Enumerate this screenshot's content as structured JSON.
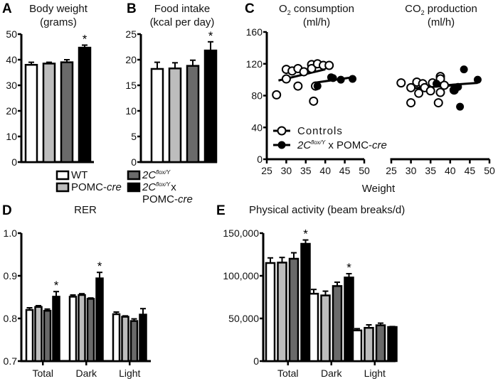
{
  "legend_groups": [
    {
      "name": "WT",
      "label": "WT",
      "italic": "",
      "sup": "",
      "rest": "",
      "line2": "",
      "fill": "#ffffff"
    },
    {
      "name": "POMC-cre",
      "label": "POMC-",
      "italic": "cre",
      "sup": "",
      "rest": "",
      "line2": "",
      "fill": "#bdbdbd"
    },
    {
      "name": "2Cflox/Y",
      "label": "2C",
      "italic": "",
      "sup": "flox/Y",
      "rest": "",
      "line2": "",
      "fill": "#6a6a6a"
    },
    {
      "name": "2Cflox/Y x POMC-cre",
      "label": "2C",
      "italic": "",
      "sup": "flox/Y",
      "rest": "x",
      "line2": "POMC-",
      "line2_italic": "cre",
      "fill": "#000000"
    }
  ],
  "chart_data": [
    {
      "panel": "A",
      "type": "bar",
      "title": [
        "Body weight",
        "(grams)"
      ],
      "ylim": [
        0,
        50
      ],
      "yticks": [
        "0",
        "10",
        "20",
        "30",
        "40",
        "50"
      ],
      "categories": [
        ""
      ],
      "series": [
        {
          "name": "WT",
          "values": [
            38
          ],
          "errors": [
            1
          ]
        },
        {
          "name": "POMC-cre",
          "values": [
            38.5
          ],
          "errors": [
            0.5
          ]
        },
        {
          "name": "2Cflox/Y",
          "values": [
            39
          ],
          "errors": [
            1
          ]
        },
        {
          "name": "2Cflox/Y x POMC-cre",
          "values": [
            44.7
          ],
          "errors": [
            1
          ]
        }
      ],
      "significant": [
        [
          false,
          false,
          false,
          true
        ]
      ]
    },
    {
      "panel": "B",
      "type": "bar",
      "title": [
        "Food intake",
        "(kcal per day)"
      ],
      "ylim": [
        0,
        25
      ],
      "yticks": [
        "0",
        "5",
        "10",
        "15",
        "20",
        "25"
      ],
      "categories": [
        ""
      ],
      "series": [
        {
          "name": "WT",
          "values": [
            18.2
          ],
          "errors": [
            1.3
          ]
        },
        {
          "name": "POMC-cre",
          "values": [
            18.3
          ],
          "errors": [
            1.1
          ]
        },
        {
          "name": "2Cflox/Y",
          "values": [
            18.8
          ],
          "errors": [
            1.1
          ]
        },
        {
          "name": "2Cflox/Y x POMC-cre",
          "values": [
            21.8
          ],
          "errors": [
            1.7
          ]
        }
      ],
      "significant": [
        [
          false,
          false,
          false,
          true
        ]
      ]
    },
    {
      "panel": "C",
      "type": "scatter",
      "xlabel": "Weight",
      "xlim": [
        25,
        50
      ],
      "ylim": [
        0,
        160
      ],
      "xticks": [
        "25",
        "30",
        "35",
        "40",
        "45",
        "50"
      ],
      "yticks": [
        "0",
        "40",
        "80",
        "120",
        "160"
      ],
      "legend": {
        "controls": "Controls",
        "mutant_base": "2C",
        "mutant_sup": "flox/Y",
        "mutant_rest": " x POMC-",
        "mutant_italic": "cre"
      },
      "subplots": [
        {
          "title_base": "O",
          "title_sub": "2",
          "title_rest": " consumption",
          "title_line2": "(ml/h)",
          "controls": [
            [
              27.5,
              81
            ],
            [
              30,
              101
            ],
            [
              30,
              113
            ],
            [
              31.5,
              111
            ],
            [
              33,
              92
            ],
            [
              33,
              114
            ],
            [
              34.5,
              110
            ],
            [
              36.5,
              119
            ],
            [
              36.5,
              114
            ],
            [
              37,
              73
            ],
            [
              37.5,
              92
            ],
            [
              38,
              120
            ],
            [
              39.5,
              118
            ],
            [
              41,
              118
            ]
          ],
          "mutants": [
            [
              38,
              92
            ],
            [
              41.5,
              103
            ],
            [
              42,
              102
            ],
            [
              44,
              100
            ],
            [
              47,
              101
            ]
          ],
          "controls_fit": [
            [
              28,
              99
            ],
            [
              40,
              113
            ]
          ],
          "mutants_fit": [
            [
              37,
              96
            ],
            [
              47,
              103
            ]
          ]
        },
        {
          "title_base": "CO",
          "title_sub": "2",
          "title_rest": " production",
          "title_line2": "(ml/h)",
          "controls": [
            [
              27.5,
              96
            ],
            [
              30,
              90
            ],
            [
              30,
              71
            ],
            [
              31.5,
              97
            ],
            [
              32,
              83
            ],
            [
              33,
              95
            ],
            [
              33.5,
              90
            ],
            [
              35,
              86
            ],
            [
              35.5,
              96
            ],
            [
              37,
              71
            ],
            [
              37.5,
              84
            ],
            [
              37.5,
              104
            ],
            [
              37.5,
              101
            ],
            [
              38.5,
              93
            ],
            [
              41,
              87
            ]
          ],
          "mutants": [
            [
              36.5,
              95
            ],
            [
              41,
              87
            ],
            [
              42,
              91
            ],
            [
              42.5,
              66
            ],
            [
              43.5,
              113
            ],
            [
              47,
              100
            ]
          ],
          "controls_fit": [
            [
              30,
              89
            ],
            [
              41,
              93
            ]
          ],
          "mutants_fit": [
            [
              36,
              92
            ],
            [
              47,
              96
            ]
          ]
        }
      ]
    },
    {
      "panel": "D",
      "type": "bar",
      "title": [
        "RER"
      ],
      "ylim": [
        0.7,
        1.0
      ],
      "yticks": [
        "0.7",
        "0.8",
        "0.9",
        "1.0"
      ],
      "categories": [
        "Total",
        "Dark",
        "Light"
      ],
      "series": [
        {
          "name": "WT",
          "values": [
            0.82,
            0.851,
            0.81
          ],
          "errors": [
            0.005,
            0.004,
            0.005
          ]
        },
        {
          "name": "POMC-cre",
          "values": [
            0.827,
            0.855,
            0.804
          ],
          "errors": [
            0.003,
            0.003,
            0.002
          ]
        },
        {
          "name": "2Cflox/Y",
          "values": [
            0.818,
            0.846,
            0.794
          ],
          "errors": [
            0.004,
            0.002,
            0.005
          ]
        },
        {
          "name": "2Cflox/Y x POMC-cre",
          "values": [
            0.851,
            0.894,
            0.809
          ],
          "errors": [
            0.012,
            0.014,
            0.014
          ]
        }
      ],
      "significant": [
        [
          false,
          false,
          false,
          true
        ],
        [
          false,
          false,
          false,
          true
        ],
        [
          false,
          false,
          false,
          false
        ]
      ]
    },
    {
      "panel": "E",
      "type": "bar",
      "title": [
        "Physical activity (beam breaks/d)"
      ],
      "ylim": [
        0,
        150000
      ],
      "yticks": [
        "0",
        "50,000",
        "100,000",
        "150,000"
      ],
      "categories": [
        "Total",
        "Dark",
        "Light"
      ],
      "series": [
        {
          "name": "WT",
          "values": [
            115000,
            79000,
            36000
          ],
          "errors": [
            6000,
            5000,
            2000
          ]
        },
        {
          "name": "POMC-cre",
          "values": [
            115500,
            77000,
            39000
          ],
          "errors": [
            6000,
            5000,
            3500
          ]
        },
        {
          "name": "2Cflox/Y",
          "values": [
            120000,
            88000,
            42000
          ],
          "errors": [
            7000,
            4500,
            2500
          ]
        },
        {
          "name": "2Cflox/Y x POMC-cre",
          "values": [
            137500,
            98000,
            40000
          ],
          "errors": [
            4500,
            4500,
            500
          ]
        }
      ],
      "significant": [
        [
          false,
          false,
          false,
          true
        ],
        [
          false,
          false,
          false,
          true
        ],
        [
          false,
          false,
          false,
          false
        ]
      ]
    }
  ],
  "asterisk": "*"
}
